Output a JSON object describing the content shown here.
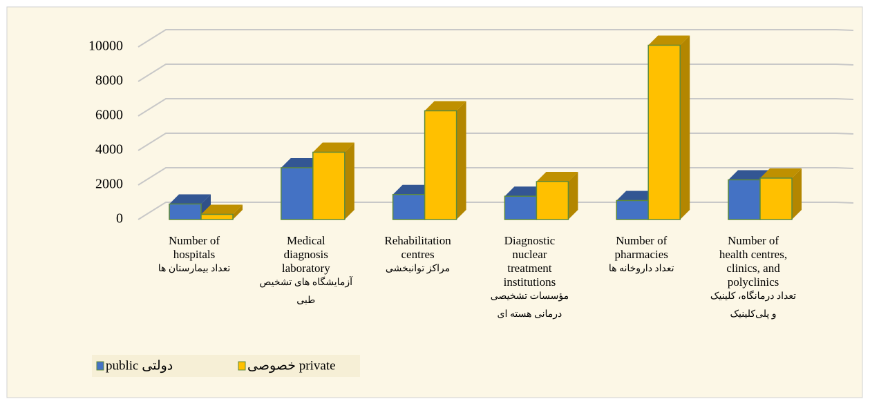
{
  "chart_data": {
    "type": "bar3d",
    "categories": [
      [
        "Number of",
        "hospitals",
        "تعداد بیمارستان ها"
      ],
      [
        "Medical",
        "diagnosis",
        "laboratory",
        "آزمایشگاه های تشخیص",
        "طبی"
      ],
      [
        "Rehabilitation",
        "centres",
        "مراکز توانبخشی"
      ],
      [
        "Diagnostic",
        "nuclear",
        "treatment",
        "institutions",
        "مؤسسات تشخیصی",
        "درمانی هسته ای"
      ],
      [
        "Number of",
        "pharmacies",
        "تعداد داروخانه ها"
      ],
      [
        "Number of",
        "health centres,",
        "clinics, and",
        "polyclinics",
        "تعداد درمانگاه، کلینیک",
        "و پلی‌کلینیک"
      ]
    ],
    "series": [
      {
        "name": "public دولتی",
        "color": "#4472c4",
        "values": [
          900,
          3000,
          1450,
          1350,
          1100,
          2300
        ]
      },
      {
        "name": "خصوصی private",
        "color": "#ffc000",
        "values": [
          300,
          3900,
          6300,
          2200,
          10100,
          2400
        ]
      }
    ],
    "ylim": [
      0,
      10000
    ],
    "yticks": [
      0,
      2000,
      4000,
      6000,
      8000,
      10000
    ],
    "grid": true,
    "legend": "bottom-left"
  }
}
